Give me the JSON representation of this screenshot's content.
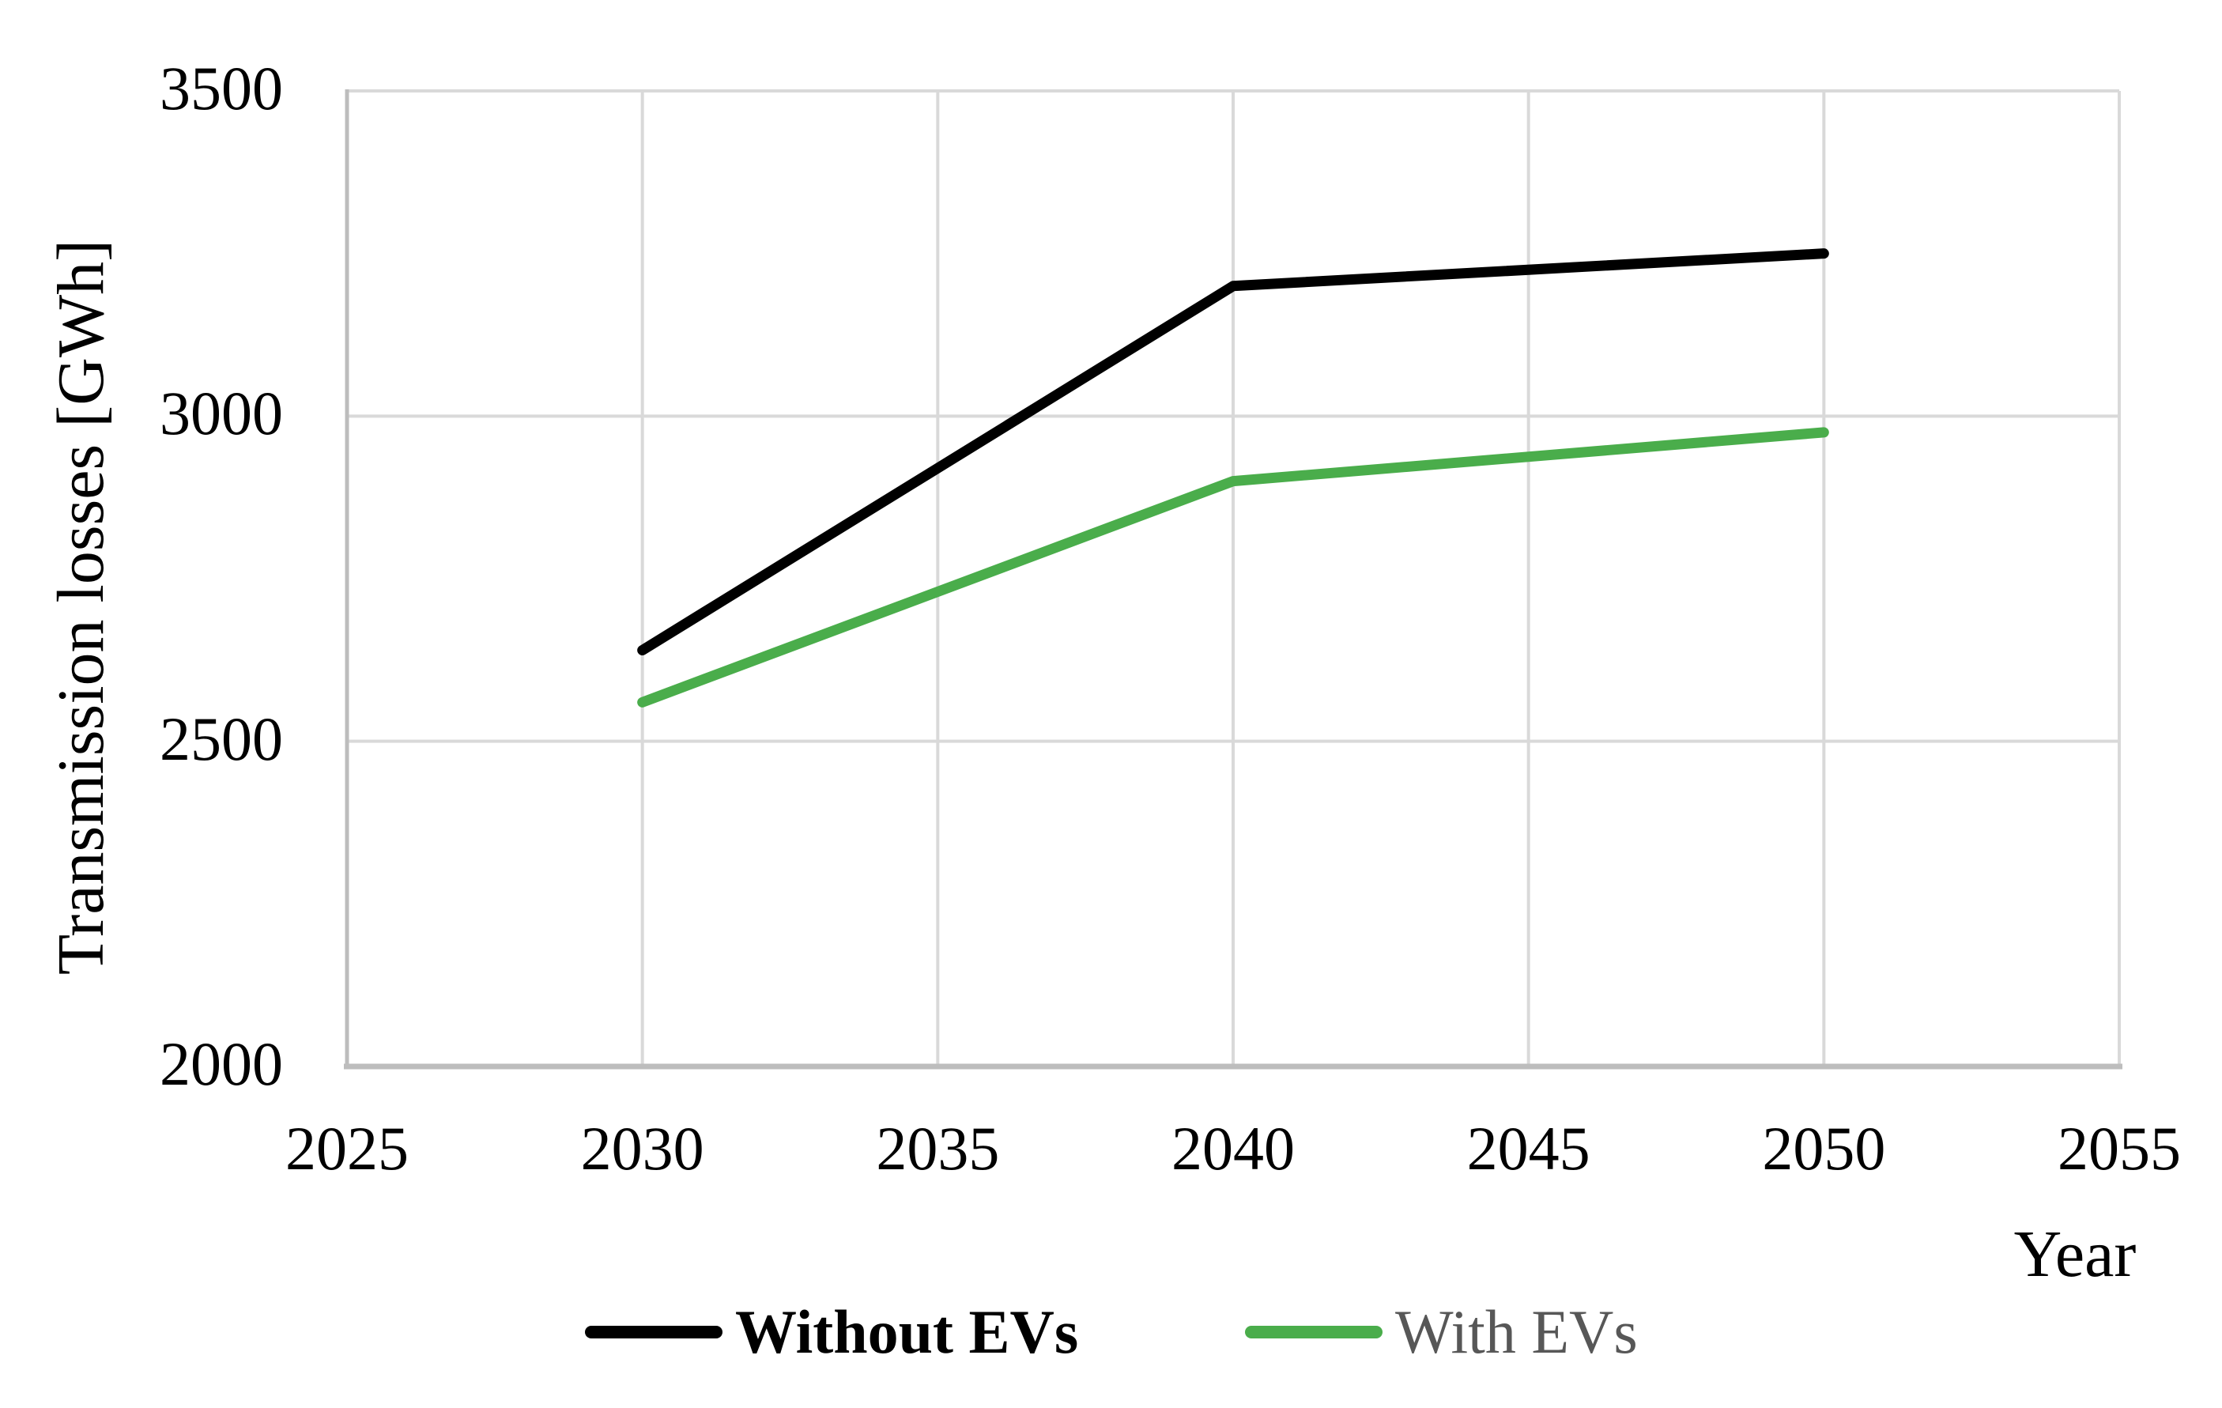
{
  "colors": {
    "background": "#ffffff",
    "gridline": "#d9d9d9",
    "axis_line": "#bdbdbd",
    "series_without_evs": "#000000",
    "series_with_evs": "#4aad4b",
    "legend_label_without_evs": "#000000",
    "legend_label_with_evs": "#575757"
  },
  "chart_data": {
    "type": "line",
    "x": [
      2030,
      2040,
      2050
    ],
    "series": [
      {
        "name": "Without EVs",
        "color": "#000000",
        "values": [
          2640,
          3200,
          3250
        ],
        "label_color": "#000000",
        "label_bold": true
      },
      {
        "name": "With EVs",
        "color": "#4aad4b",
        "values": [
          2560,
          2900,
          2975
        ],
        "label_color": "#575757",
        "label_bold": false
      }
    ],
    "title": "",
    "xlabel": "Year",
    "ylabel": "Transmission losses [GWh]",
    "xlim": [
      2025,
      2055
    ],
    "ylim": [
      2000,
      3500
    ],
    "x_ticks": [
      "2025",
      "2030",
      "2035",
      "2040",
      "2045",
      "2050",
      "2055"
    ],
    "y_ticks": [
      "3500",
      "3000",
      "2500",
      "2000"
    ],
    "y_tick_values": [
      3500,
      3000,
      2500,
      2000
    ],
    "x_tick_values": [
      2025,
      2030,
      2035,
      2040,
      2045,
      2050,
      2055
    ],
    "grid": true,
    "legend_position": "bottom-center"
  }
}
